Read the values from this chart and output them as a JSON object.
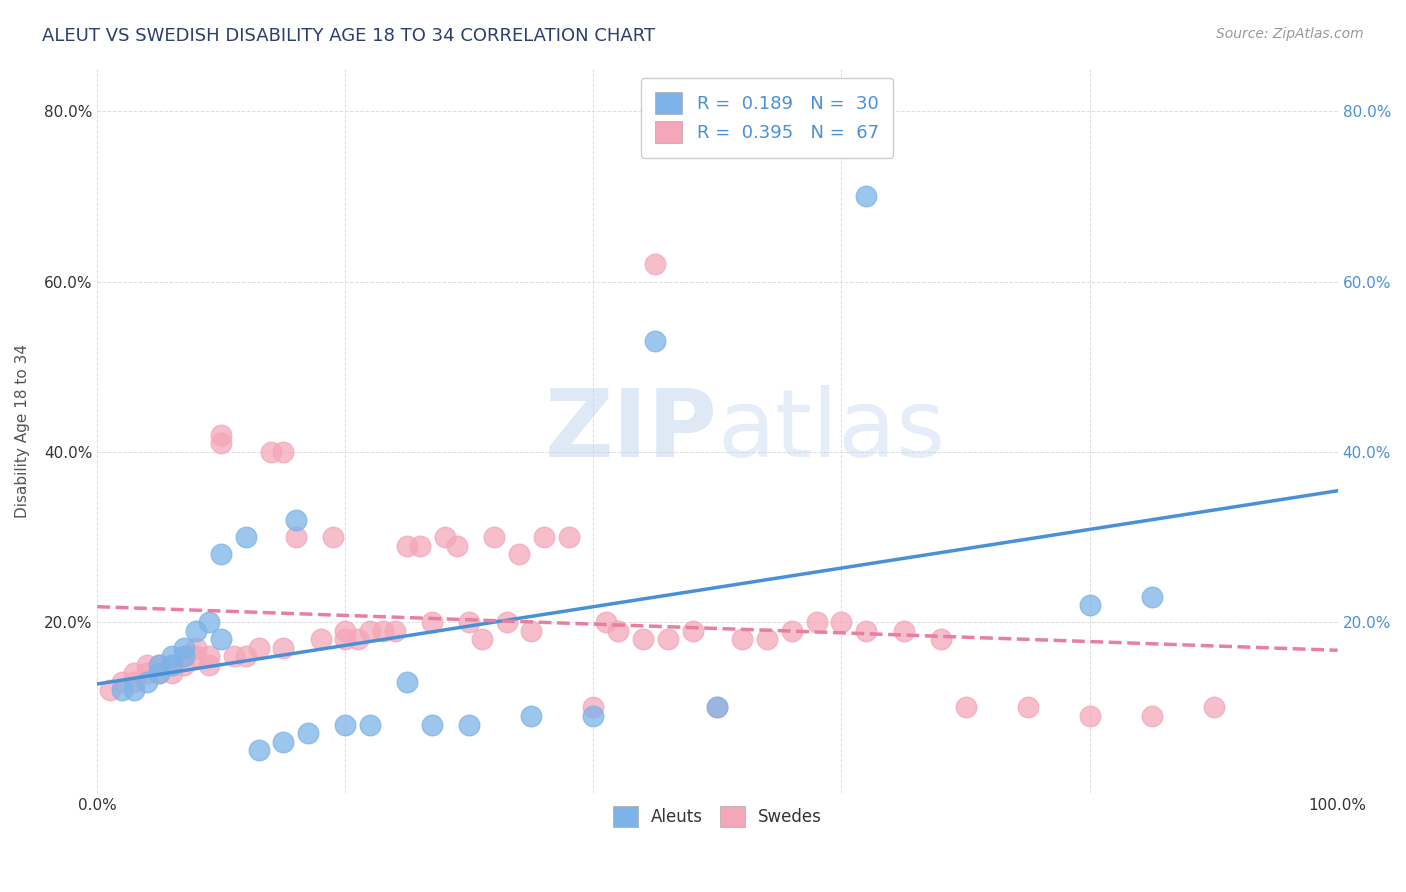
{
  "title": "ALEUT VS SWEDISH DISABILITY AGE 18 TO 34 CORRELATION CHART",
  "source_text": "Source: ZipAtlas.com",
  "ylabel": "Disability Age 18 to 34",
  "xlim": [
    0,
    1.0
  ],
  "ylim": [
    0,
    0.85
  ],
  "xticks": [
    0.0,
    0.2,
    0.4,
    0.6,
    0.8,
    1.0
  ],
  "xtick_labels": [
    "0.0%",
    "",
    "",
    "",
    "",
    "100.0%"
  ],
  "ytick_labels": [
    "",
    "20.0%",
    "40.0%",
    "60.0%",
    "80.0%"
  ],
  "yticks": [
    0.0,
    0.2,
    0.4,
    0.6,
    0.8
  ],
  "aleut_color": "#7db3e8",
  "swede_color": "#f4a7b9",
  "aleut_line_color": "#4a90d9",
  "swede_line_color": "#e87ea1",
  "R_aleut": 0.189,
  "N_aleut": 30,
  "R_swede": 0.395,
  "N_swede": 67,
  "legend_label_aleut": "Aleuts",
  "legend_label_swede": "Swedes",
  "watermark_zip": "ZIP",
  "watermark_atlas": "atlas",
  "background_color": "#ffffff",
  "grid_color": "#dddddd",
  "title_color": "#2c3e6b",
  "aleut_x": [
    0.02,
    0.03,
    0.04,
    0.05,
    0.05,
    0.06,
    0.06,
    0.07,
    0.07,
    0.08,
    0.09,
    0.1,
    0.1,
    0.12,
    0.13,
    0.15,
    0.16,
    0.17,
    0.2,
    0.22,
    0.25,
    0.27,
    0.3,
    0.35,
    0.4,
    0.45,
    0.5,
    0.62,
    0.8,
    0.85
  ],
  "aleut_y": [
    0.12,
    0.12,
    0.13,
    0.14,
    0.15,
    0.16,
    0.15,
    0.17,
    0.16,
    0.19,
    0.2,
    0.18,
    0.28,
    0.3,
    0.05,
    0.06,
    0.32,
    0.07,
    0.08,
    0.08,
    0.13,
    0.08,
    0.08,
    0.09,
    0.09,
    0.53,
    0.1,
    0.7,
    0.22,
    0.23
  ],
  "swede_x": [
    0.01,
    0.02,
    0.03,
    0.03,
    0.04,
    0.04,
    0.05,
    0.05,
    0.06,
    0.06,
    0.07,
    0.07,
    0.08,
    0.08,
    0.09,
    0.09,
    0.1,
    0.1,
    0.11,
    0.12,
    0.13,
    0.14,
    0.15,
    0.15,
    0.16,
    0.18,
    0.19,
    0.2,
    0.2,
    0.21,
    0.22,
    0.23,
    0.24,
    0.25,
    0.26,
    0.27,
    0.28,
    0.29,
    0.3,
    0.31,
    0.32,
    0.33,
    0.34,
    0.35,
    0.36,
    0.38,
    0.4,
    0.41,
    0.42,
    0.44,
    0.45,
    0.46,
    0.48,
    0.5,
    0.52,
    0.54,
    0.56,
    0.58,
    0.6,
    0.62,
    0.65,
    0.68,
    0.7,
    0.75,
    0.8,
    0.85,
    0.9
  ],
  "swede_y": [
    0.12,
    0.13,
    0.13,
    0.14,
    0.14,
    0.15,
    0.14,
    0.15,
    0.14,
    0.15,
    0.15,
    0.16,
    0.16,
    0.17,
    0.15,
    0.16,
    0.41,
    0.42,
    0.16,
    0.16,
    0.17,
    0.4,
    0.4,
    0.17,
    0.3,
    0.18,
    0.3,
    0.18,
    0.19,
    0.18,
    0.19,
    0.19,
    0.19,
    0.29,
    0.29,
    0.2,
    0.3,
    0.29,
    0.2,
    0.18,
    0.3,
    0.2,
    0.28,
    0.19,
    0.3,
    0.3,
    0.1,
    0.2,
    0.19,
    0.18,
    0.62,
    0.18,
    0.19,
    0.1,
    0.18,
    0.18,
    0.19,
    0.2,
    0.2,
    0.19,
    0.19,
    0.18,
    0.1,
    0.1,
    0.09,
    0.09,
    0.1
  ]
}
